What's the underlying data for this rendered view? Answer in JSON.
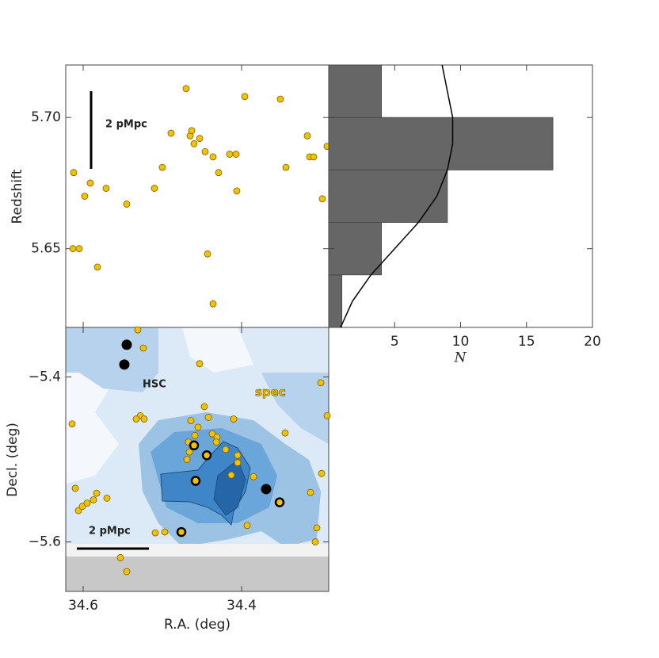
{
  "chart_data": [
    {
      "type": "scatter",
      "ylabel": "Redshift",
      "annotation": "2 pMpc",
      "xlim": [
        34.622,
        34.29
      ],
      "ylim": [
        5.62,
        5.72
      ],
      "yticks": [
        5.65,
        {
          "value": 5.7,
          "label": "5.70"
        }
      ],
      "series": [
        {
          "color": "#f2c200",
          "marker": "dot",
          "x": [
            34.612,
            34.605,
            34.613,
            34.598,
            34.591,
            34.582,
            34.571,
            34.545,
            34.51,
            34.5,
            34.489,
            34.47,
            34.465,
            34.463,
            34.46,
            34.453,
            34.446,
            34.443,
            34.436,
            34.436,
            34.429,
            34.415,
            34.407,
            34.406,
            34.396,
            34.351,
            34.344,
            34.317,
            34.314,
            34.309,
            34.298,
            34.292
          ],
          "values": [
            5.679,
            5.65,
            5.65,
            5.67,
            5.675,
            5.643,
            5.673,
            5.667,
            5.673,
            5.681,
            5.694,
            5.711,
            5.693,
            5.695,
            5.69,
            5.692,
            5.687,
            5.648,
            5.685,
            5.629,
            5.679,
            5.686,
            5.686,
            5.672,
            5.708,
            5.707,
            5.681,
            5.693,
            5.685,
            5.685,
            5.669,
            5.689
          ]
        }
      ]
    },
    {
      "type": "histogram",
      "xlabel": "N",
      "color": "#666666",
      "xlim": [
        0,
        20
      ],
      "xticks": [
        5,
        10,
        15,
        20
      ],
      "ylim": [
        5.62,
        5.72
      ],
      "bins": [
        5.62,
        5.64,
        5.66,
        5.68,
        5.7,
        5.72
      ],
      "values": [
        1,
        4,
        9,
        17,
        4
      ],
      "curve": {
        "z": [
          5.62,
          5.63,
          5.64,
          5.65,
          5.66,
          5.67,
          5.68,
          5.69,
          5.7,
          5.71,
          5.72
        ],
        "values": [
          0.9,
          1.8,
          3.2,
          5.0,
          6.8,
          8.2,
          9.0,
          9.4,
          9.4,
          9.0,
          8.6
        ]
      }
    },
    {
      "type": "scatter",
      "xlabel": "R.A. (deg)",
      "ylabel": "Decl. (deg)",
      "annotations": [
        "HSC",
        "spec",
        "2 pMpc"
      ],
      "xlim": [
        34.622,
        34.29
      ],
      "ylim": [
        -5.66,
        -5.34
      ],
      "xticks": [
        34.6,
        34.4
      ],
      "yticks": [
        {
          "value": -5.4,
          "label": "−5.4"
        },
        {
          "value": -5.6,
          "label": "−5.6"
        }
      ],
      "series": [
        {
          "color": "#f2c200",
          "marker": "dot",
          "x": [
            34.531,
            34.524,
            34.453,
            34.3,
            34.614,
            34.528,
            34.523,
            34.533,
            34.447,
            34.442,
            34.464,
            34.41,
            34.345,
            34.455,
            34.459,
            34.437,
            34.431,
            34.467,
            34.466,
            34.469,
            34.432,
            34.405,
            34.42,
            34.405,
            34.413,
            34.385,
            34.299,
            34.313,
            34.61,
            34.606,
            34.601,
            34.595,
            34.583,
            34.587,
            34.57,
            34.509,
            34.497,
            34.393,
            34.305,
            34.307,
            34.553,
            34.545,
            34.292
          ],
          "values": [
            -5.343,
            -5.365,
            -5.384,
            -5.407,
            -5.457,
            -5.447,
            -5.451,
            -5.451,
            -5.436,
            -5.449,
            -5.453,
            -5.451,
            -5.468,
            -5.461,
            -5.471,
            -5.469,
            -5.473,
            -5.479,
            -5.491,
            -5.5,
            -5.479,
            -5.495,
            -5.488,
            -5.504,
            -5.519,
            -5.521,
            -5.517,
            -5.54,
            -5.535,
            -5.562,
            -5.557,
            -5.553,
            -5.541,
            -5.549,
            -5.547,
            -5.589,
            -5.588,
            -5.58,
            -5.583,
            -5.6,
            -5.619,
            -5.636,
            -5.447
          ]
        },
        {
          "color": "#f2c200",
          "marker": "ring",
          "x": [
            34.46,
            34.444,
            34.458,
            34.476,
            34.352
          ],
          "values": [
            -5.483,
            -5.495,
            -5.526,
            -5.588,
            -5.552
          ]
        },
        {
          "color": "#000000",
          "marker": "disk",
          "x": [
            34.545,
            34.548,
            34.369
          ],
          "values": [
            -5.361,
            -5.385,
            -5.536
          ]
        }
      ]
    }
  ]
}
